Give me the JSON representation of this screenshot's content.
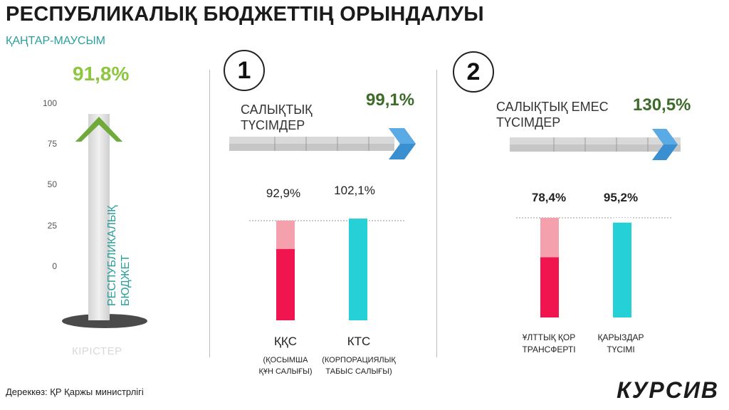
{
  "title": "РЕСПУБЛИКАЛЫҚ БЮДЖЕТТІҢ ОРЫНДАЛУЫ",
  "period": "ҚАҢТАР-МАУСЫМ",
  "source": "Дереккөз: ҚР Қаржы министрлігі",
  "logo": "КУРСИВ",
  "colors": {
    "green_light": "#8dc63f",
    "green_dark": "#3d6b2a",
    "teal": "#2a9e9a",
    "crimson": "#f0144f",
    "pink": "#f5a0ad",
    "cyan": "#25d1d6",
    "arrow_blue": "#3a8fd1"
  },
  "chart_data": [
    {
      "type": "bar",
      "percent_label": "91,8%",
      "yticks": [
        "100",
        "75",
        "50",
        "25",
        "0"
      ],
      "ylim": [
        0,
        100
      ],
      "vertical_label": [
        "РЕСПУБЛИКАЛЫҚ",
        "БЮДЖЕТ"
      ],
      "xlabel": "КІРІСТЕР",
      "value": 91.8
    },
    {
      "type": "bar",
      "number": "1",
      "title": [
        "САЛЫҚТЫҚ",
        "ТҮСІМДЕР"
      ],
      "percent_label": "99,1%",
      "progress": 99.1,
      "bars": [
        {
          "label": "92,9%",
          "value": 92.9,
          "category": "ҚҚС",
          "sublabel": [
            "(ҚОСЫМША",
            "ҚҰН САЛЫҒЫ)"
          ]
        },
        {
          "label": "102,1%",
          "value": 102.1,
          "category": "КТС",
          "sublabel": [
            "(КОРПОРАЦИЯЛЫҚ",
            "ТАБЫС САЛЫҒЫ)"
          ]
        }
      ]
    },
    {
      "type": "bar",
      "number": "2",
      "title": [
        "САЛЫҚТЫҚ ЕМЕС",
        "ТҮСІМДЕР"
      ],
      "percent_label": "130,5%",
      "progress": 130.5,
      "bars": [
        {
          "label": "78,4%",
          "value": 78.4,
          "category": [
            "ҰЛТТЫҚ ҚОР",
            "ТРАНСФЕРТІ"
          ]
        },
        {
          "label": "95,2%",
          "value": 95.2,
          "category": [
            "ҚАРЫЗДАР",
            "ТҮСІМІ"
          ]
        }
      ]
    }
  ]
}
